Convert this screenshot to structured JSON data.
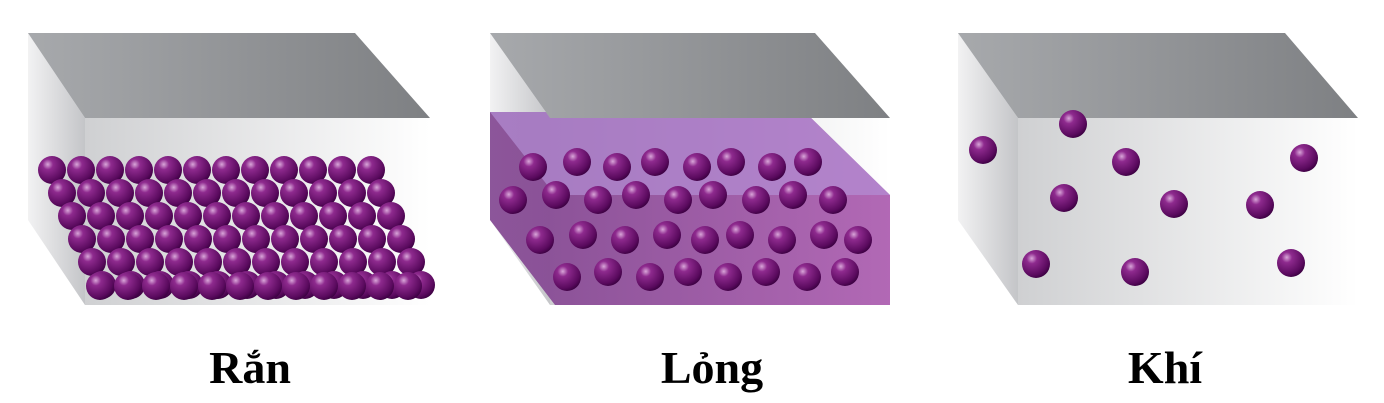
{
  "states": [
    {
      "label": "Rắn"
    },
    {
      "label": "Lỏng"
    },
    {
      "label": "Khí"
    }
  ]
}
